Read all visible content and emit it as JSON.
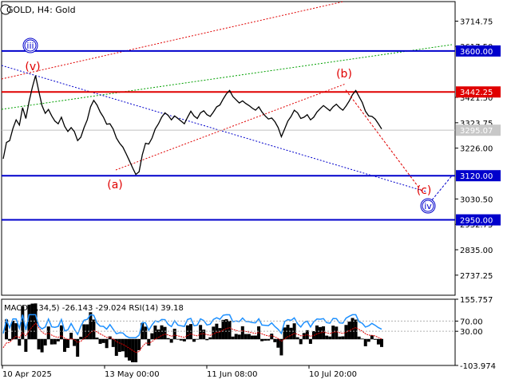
{
  "header": {
    "symbol": "GOLD",
    "timeframe": "H4",
    "description": "Gold"
  },
  "price_axis": {
    "ticks": [
      "3714.75",
      "3617.50",
      "3421.50",
      "3323.75",
      "3226.00",
      "3030.50",
      "2932.75",
      "2835.00",
      "2737.25"
    ]
  },
  "levels": [
    {
      "label": "3600.00",
      "value": 3600.0,
      "color": "#0000cc"
    },
    {
      "label": "3442.25",
      "value": 3442.25,
      "color": "#e00000"
    },
    {
      "label": "3120.00",
      "value": 3120.0,
      "color": "#0000cc"
    },
    {
      "label": "2950.00",
      "value": 2950.0,
      "color": "#0000cc"
    }
  ],
  "current_price": {
    "label": "3295.07",
    "value": 3295.07
  },
  "wave_labels": [
    {
      "text": "(v)",
      "color": "#e00000",
      "circled": false
    },
    {
      "text": "(a)",
      "color": "#e00000",
      "circled": false
    },
    {
      "text": "(b)",
      "color": "#e00000",
      "circled": false
    },
    {
      "text": "(c)",
      "color": "#e00000",
      "circled": false
    },
    {
      "text": "iii",
      "color": "#0000cc",
      "circled": true
    },
    {
      "text": "iv",
      "color": "#0000cc",
      "circled": true
    }
  ],
  "time_axis": {
    "labels": [
      "10 Apr 2025",
      "13 May 00:00",
      "11 Jun 08:00",
      "10 Jul 20:00"
    ]
  },
  "indicator": {
    "title": "MACD(5,34,5) -26.143 -29.024 RSI(14) 39.18",
    "ticks": [
      "155.757",
      "70.00",
      "30.00",
      "-103.974"
    ]
  },
  "chart_data": {
    "type": "line",
    "title": "GOLD, H4:  Gold",
    "ylim": [
      2660,
      3790
    ],
    "series": [
      {
        "name": "GOLD",
        "values": [
          3185,
          3248,
          3255,
          3302,
          3335,
          3315,
          3382,
          3340,
          3405,
          3460,
          3505,
          3445,
          3390,
          3360,
          3375,
          3350,
          3330,
          3320,
          3345,
          3310,
          3290,
          3305,
          3290,
          3255,
          3268,
          3305,
          3335,
          3385,
          3410,
          3392,
          3365,
          3345,
          3318,
          3320,
          3300,
          3265,
          3245,
          3230,
          3205,
          3178,
          3150,
          3125,
          3135,
          3200,
          3245,
          3242,
          3265,
          3300,
          3320,
          3345,
          3362,
          3352,
          3335,
          3350,
          3340,
          3330,
          3320,
          3345,
          3368,
          3350,
          3340,
          3362,
          3370,
          3355,
          3348,
          3365,
          3385,
          3392,
          3415,
          3435,
          3448,
          3425,
          3412,
          3400,
          3408,
          3398,
          3390,
          3380,
          3372,
          3385,
          3365,
          3350,
          3338,
          3342,
          3328,
          3305,
          3270,
          3300,
          3330,
          3348,
          3372,
          3362,
          3340,
          3345,
          3355,
          3335,
          3345,
          3365,
          3378,
          3390,
          3380,
          3370,
          3385,
          3395,
          3382,
          3372,
          3388,
          3408,
          3432,
          3448,
          3425,
          3402,
          3368,
          3350,
          3348,
          3338,
          3320,
          3300
        ]
      }
    ],
    "wave_path": [
      {
        "label": "(v)",
        "price": 3510
      },
      {
        "label": "(a)",
        "price": 3125
      },
      {
        "label": "(b)",
        "price": 3450
      },
      {
        "label": "(c)",
        "price": 3060
      },
      {
        "label": "iv",
        "price": 3000
      }
    ]
  }
}
